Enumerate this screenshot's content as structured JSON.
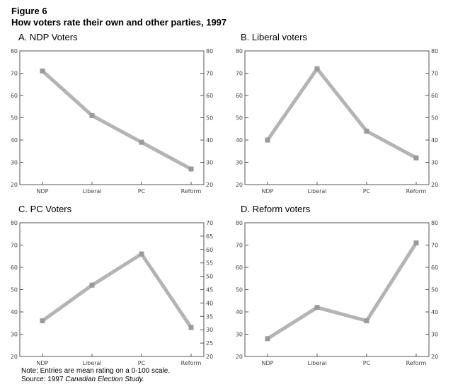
{
  "figure_label": "Figure 6",
  "figure_title": "How voters rate their own and other parties, 1997",
  "note": "Note: Entries are mean rating on a 0-100 scale.",
  "source_prefix": "Source: 1997 ",
  "source_title": "Canadian Election Study.",
  "line_color": "#b4b4b4",
  "chart_data": [
    {
      "type": "line",
      "title": "A. NDP Voters",
      "categories": [
        "NDP",
        "Liberal",
        "PC",
        "Reform"
      ],
      "values": [
        71,
        51,
        39,
        27
      ],
      "ylim": [
        20,
        80
      ],
      "yticks": [
        20,
        30,
        40,
        50,
        60,
        70,
        80
      ],
      "ylim_right": [
        20,
        80
      ],
      "yticks_right": [
        20,
        30,
        40,
        50,
        60,
        70,
        80
      ],
      "grid": false
    },
    {
      "type": "line",
      "title": "B. Liberal voters",
      "categories": [
        "NDP",
        "Liberal",
        "PC",
        "Reform"
      ],
      "values": [
        40,
        72,
        44,
        32
      ],
      "ylim": [
        20,
        80
      ],
      "yticks": [
        20,
        30,
        40,
        50,
        60,
        70,
        80
      ],
      "ylim_right": [
        20,
        80
      ],
      "yticks_right": [
        20,
        30,
        40,
        50,
        60,
        70,
        80
      ],
      "grid": false
    },
    {
      "type": "line",
      "title": "C. PC Voters",
      "categories": [
        "NDP",
        "Liberal",
        "PC",
        "Reform"
      ],
      "values": [
        36,
        52,
        66,
        33
      ],
      "ylim": [
        20,
        80
      ],
      "yticks": [
        20,
        30,
        40,
        50,
        60,
        70,
        80
      ],
      "ylim_right": [
        20,
        70
      ],
      "yticks_right": [
        20,
        25,
        30,
        35,
        40,
        45,
        50,
        55,
        60,
        65,
        70
      ],
      "grid": false
    },
    {
      "type": "line",
      "title": "D. Reform voters",
      "categories": [
        "NDP",
        "Liberal",
        "PC",
        "Reform"
      ],
      "values": [
        28,
        42,
        36,
        71
      ],
      "ylim": [
        20,
        80
      ],
      "yticks": [
        20,
        30,
        40,
        50,
        60,
        70,
        80
      ],
      "ylim_right": [
        20,
        80
      ],
      "yticks_right": [
        20,
        30,
        40,
        50,
        60,
        70,
        80
      ],
      "grid": false
    }
  ]
}
